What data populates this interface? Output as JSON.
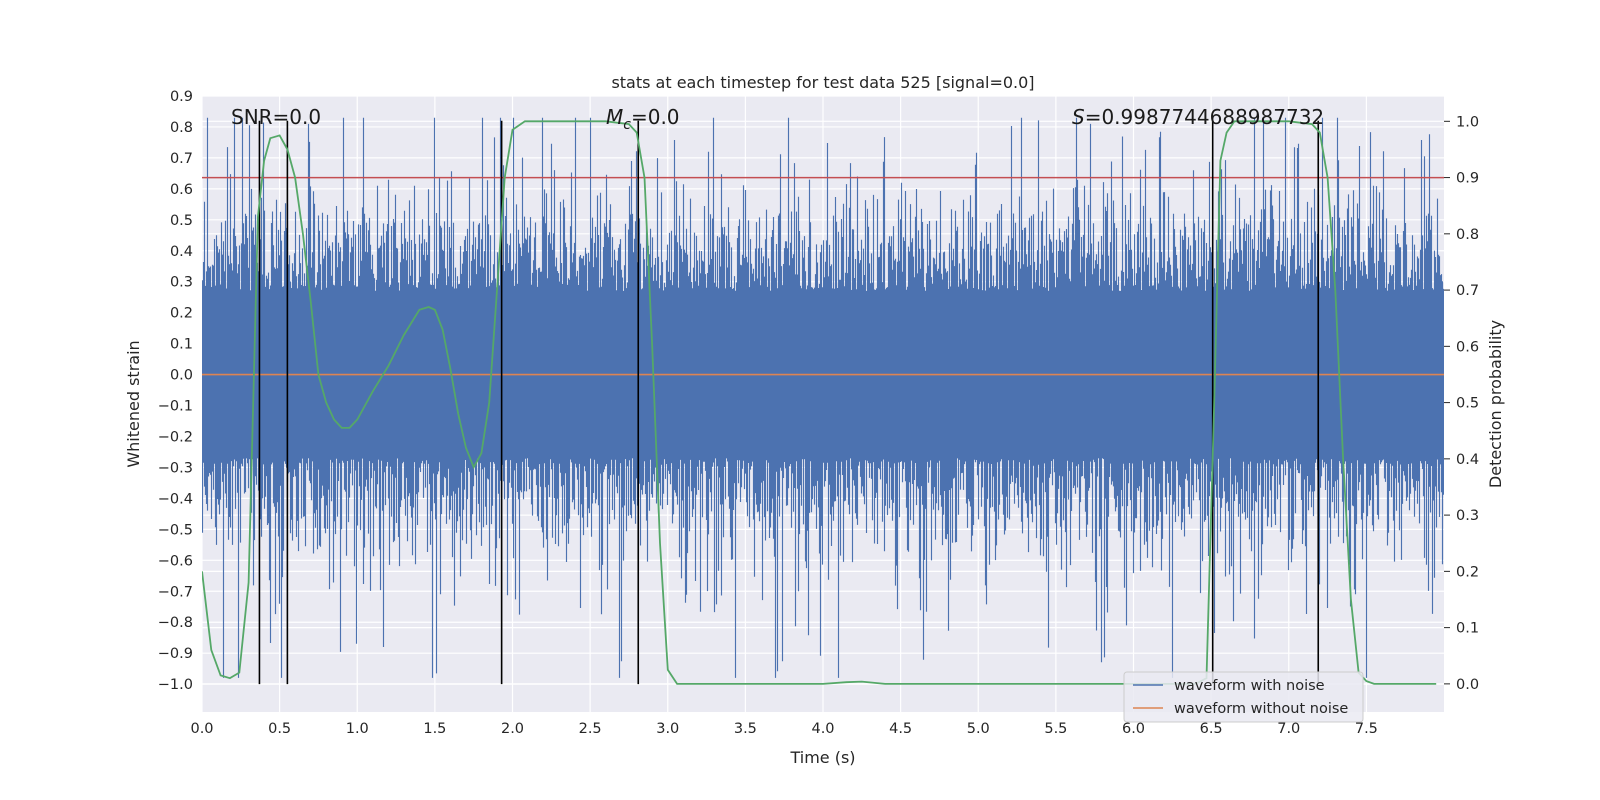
{
  "chart_data": {
    "type": "line",
    "title": "stats at each timestep for test data 525 [signal=0.0]",
    "xlabel": "Time (s)",
    "ylabel": "Whitened strain",
    "y2label": "Detection probability",
    "xlim": [
      0.0,
      8.0
    ],
    "ylim": [
      -1.09,
      0.9
    ],
    "y2lim": [
      -0.05,
      1.045
    ],
    "x_ticks": [
      "0.0",
      "0.5",
      "1.0",
      "1.5",
      "2.0",
      "2.5",
      "3.0",
      "3.5",
      "4.0",
      "4.5",
      "5.0",
      "5.5",
      "6.0",
      "6.5",
      "7.0",
      "7.5"
    ],
    "y_ticks": [
      "0.9",
      "0.8",
      "0.7",
      "0.6",
      "0.5",
      "0.4",
      "0.3",
      "0.2",
      "0.1",
      "0.0",
      "−0.1",
      "−0.2",
      "−0.3",
      "−0.4",
      "−0.5",
      "−0.6",
      "−0.7",
      "−0.8",
      "−0.9",
      "−1.0"
    ],
    "y2_ticks": [
      "1.0",
      "0.9",
      "0.8",
      "0.7",
      "0.6",
      "0.5",
      "0.4",
      "0.3",
      "0.2",
      "0.1",
      "0.0"
    ],
    "grid": true,
    "legend_position": "lower-right",
    "legend": [
      "waveform with noise",
      "waveform without noise"
    ],
    "annotations": {
      "snr": "SNR=0.0",
      "mc_symbol": "M",
      "mc_sub": "c",
      "mc_value": "=0.0",
      "s_symbol": "S",
      "s_value": "=0.9987744688987732"
    },
    "colors": {
      "noise": "#4c72b0",
      "clean": "#dd8452",
      "probability": "#55a868",
      "threshold": "#c44e52",
      "vlines": "#000000",
      "background": "#eaeaf2",
      "grid": "#ffffff"
    },
    "threshold": 0.9,
    "clean_waveform_value": 0.0,
    "detection_vlines": [
      0.37,
      0.55,
      1.93,
      2.81,
      6.51,
      7.19
    ],
    "detection_vlines_range": [
      -1.0,
      0.82
    ],
    "probability_series": {
      "x": [
        0.0,
        0.06,
        0.12,
        0.18,
        0.24,
        0.3,
        0.33,
        0.36,
        0.4,
        0.44,
        0.5,
        0.55,
        0.6,
        0.65,
        0.7,
        0.75,
        0.8,
        0.85,
        0.9,
        0.95,
        1.0,
        1.1,
        1.2,
        1.3,
        1.4,
        1.46,
        1.5,
        1.55,
        1.6,
        1.65,
        1.7,
        1.75,
        1.8,
        1.85,
        1.9,
        1.95,
        2.0,
        2.08,
        2.2,
        2.4,
        2.6,
        2.75,
        2.8,
        2.85,
        2.9,
        2.95,
        3.0,
        3.06,
        3.2,
        3.5,
        3.8,
        4.0,
        4.15,
        4.25,
        4.4,
        4.6,
        5.0,
        5.5,
        6.0,
        6.2,
        6.4,
        6.47,
        6.52,
        6.56,
        6.6,
        6.65,
        6.7,
        7.0,
        7.15,
        7.2,
        7.25,
        7.3,
        7.35,
        7.4,
        7.45,
        7.5,
        7.55,
        7.6,
        7.7,
        7.95
      ],
      "y": [
        0.2,
        0.06,
        0.015,
        0.01,
        0.02,
        0.18,
        0.5,
        0.83,
        0.93,
        0.97,
        0.975,
        0.95,
        0.9,
        0.8,
        0.68,
        0.55,
        0.5,
        0.47,
        0.455,
        0.455,
        0.47,
        0.52,
        0.565,
        0.62,
        0.665,
        0.67,
        0.665,
        0.63,
        0.56,
        0.48,
        0.42,
        0.385,
        0.41,
        0.5,
        0.7,
        0.9,
        0.985,
        1.0,
        1.0,
        1.0,
        1.0,
        0.995,
        0.98,
        0.9,
        0.6,
        0.25,
        0.025,
        0.0,
        0.0,
        0.0,
        0.0,
        0.0,
        0.003,
        0.004,
        0.0,
        0.0,
        0.0,
        0.0,
        0.0,
        0.0,
        0.0,
        0.01,
        0.5,
        0.93,
        0.98,
        1.0,
        1.0,
        1.0,
        0.995,
        0.98,
        0.9,
        0.7,
        0.4,
        0.15,
        0.02,
        0.005,
        0.0,
        0.0,
        0.0,
        0.0
      ]
    }
  }
}
